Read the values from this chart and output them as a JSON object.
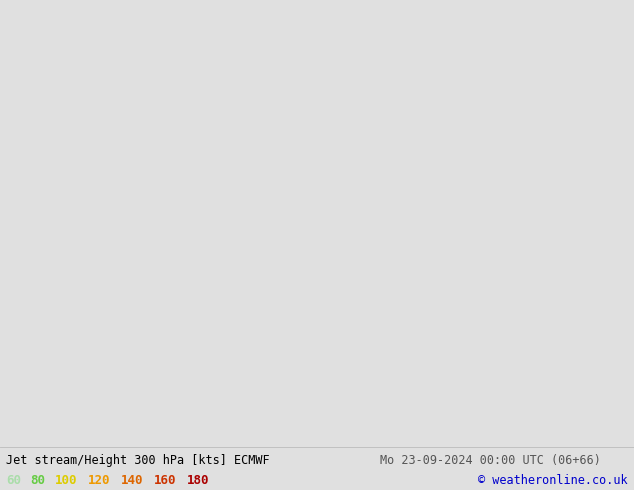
{
  "title_left": "Jet stream/Height 300 hPa [kts] ECMWF",
  "title_right": "Mo 23-09-2024 00:00 UTC (06+66)",
  "copyright": "© weatheronline.co.uk",
  "legend_values": [
    "60",
    "80",
    "100",
    "120",
    "140",
    "160",
    "180"
  ],
  "legend_colors": [
    "#aaddaa",
    "#66cc44",
    "#ddcc00",
    "#ee9900",
    "#dd6600",
    "#cc3300",
    "#aa0000"
  ],
  "legend_text_colors": [
    "#aaddaa",
    "#66cc44",
    "#ddcc00",
    "#ee9900",
    "#dd6600",
    "#cc3300",
    "#aa0000"
  ],
  "bg_color": "#e0e0e0",
  "ocean_color": "#d8d8d8",
  "land_color": "#c8ddb0",
  "lake_color": "#c8dce8",
  "label_color_left": "#000000",
  "label_color_right": "#555555",
  "copyright_color": "#0000cc",
  "figsize": [
    6.34,
    4.9
  ],
  "dpi": 100,
  "contour_levels": [
    512,
    612,
    712,
    812,
    844,
    912,
    944
  ],
  "jet_levels": [
    60,
    80,
    100,
    120,
    140,
    160,
    180,
    220
  ]
}
